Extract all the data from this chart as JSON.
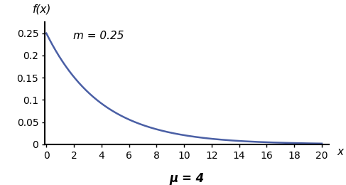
{
  "mu": 4,
  "m": 0.25,
  "x_min": 0,
  "x_max": 20,
  "x_ticks": [
    0,
    2,
    4,
    6,
    8,
    10,
    12,
    14,
    16,
    18,
    20
  ],
  "y_min": 0,
  "y_max": 0.275,
  "y_ticks": [
    0,
    0.05,
    0.1,
    0.15,
    0.2,
    0.25
  ],
  "y_tick_labels": [
    "0",
    "0.05",
    "0.1",
    "0.15",
    "0.2",
    "0.25"
  ],
  "xlabel": "x",
  "ylabel": "f(x)",
  "mu_label": "μ = 4",
  "m_annotation": "m = 0.25",
  "line_color": "#4A5FA5",
  "line_width": 1.8,
  "background_color": "#ffffff",
  "mu_fontsize": 12,
  "label_fontsize": 11,
  "annotation_fontsize": 11,
  "tick_fontsize": 10
}
